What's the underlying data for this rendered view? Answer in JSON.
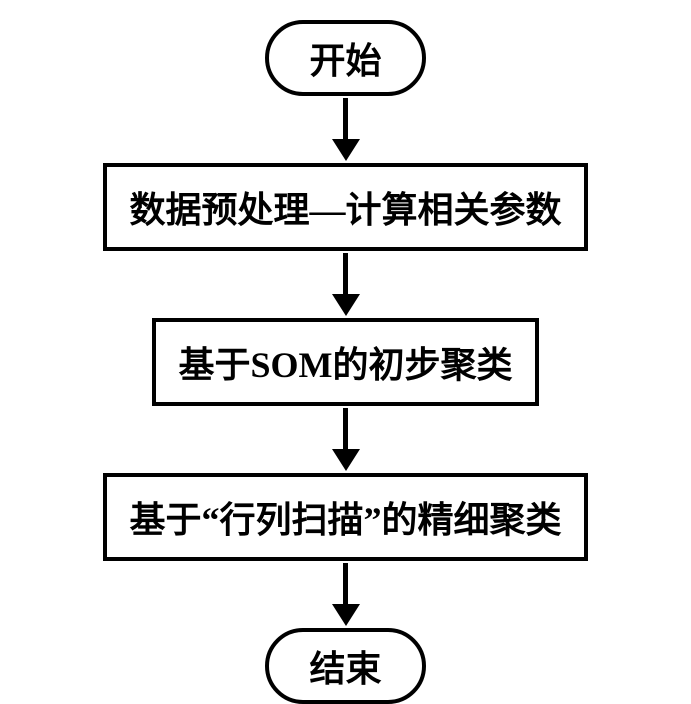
{
  "flowchart": {
    "type": "flowchart",
    "background_color": "#ffffff",
    "stroke_color": "#000000",
    "stroke_width": 4,
    "font_size": 36,
    "font_weight": "bold",
    "font_family": "SimSun",
    "nodes": {
      "start": {
        "shape": "terminal",
        "label": "开始"
      },
      "step1": {
        "shape": "process",
        "label": "数据预处理—计算相关参数"
      },
      "step2": {
        "shape": "process",
        "label": "基于SOM的初步聚类"
      },
      "step3": {
        "shape": "process",
        "label": "基于“行列扫描”的精细聚类"
      },
      "end": {
        "shape": "terminal",
        "label": "结束"
      }
    },
    "arrows": {
      "a1": {
        "length": 42
      },
      "a2": {
        "length": 42
      },
      "a3": {
        "length": 42
      },
      "a4": {
        "length": 42
      }
    },
    "edges": [
      {
        "from": "start",
        "to": "step1"
      },
      {
        "from": "step1",
        "to": "step2"
      },
      {
        "from": "step2",
        "to": "step3"
      },
      {
        "from": "step3",
        "to": "end"
      }
    ]
  }
}
